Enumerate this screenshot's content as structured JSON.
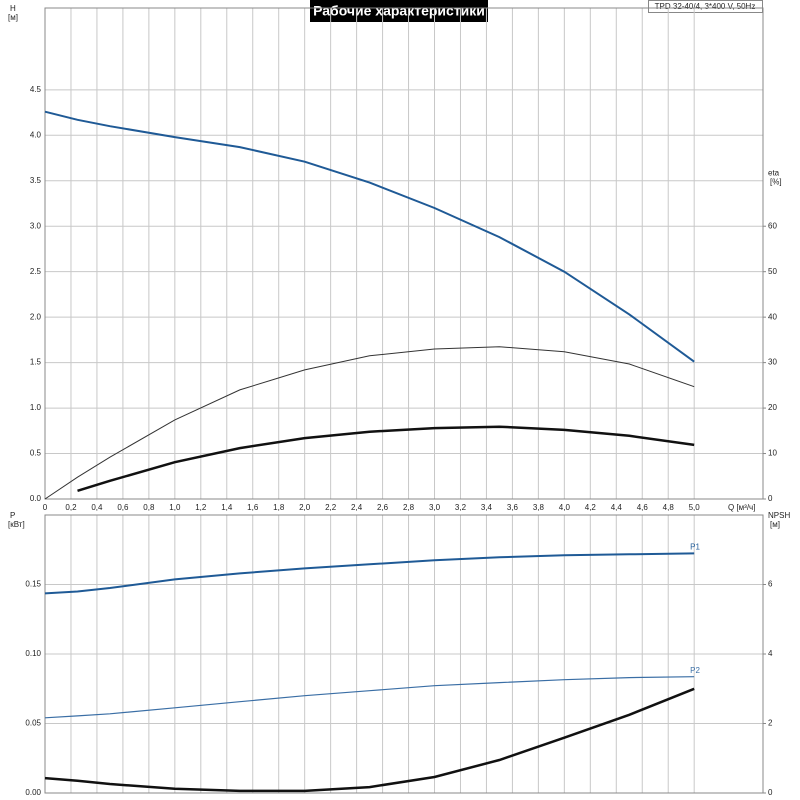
{
  "title": "Рабочие характеристики",
  "model": "TPD 32-40/4, 3*400 V, 50Hz",
  "chart_data": [
    {
      "type": "line",
      "xlabel": "Q [м³/ч]",
      "ylabel": "H",
      "yunit": "[м]",
      "y2label": "eta",
      "y2unit": "[%]",
      "xlim": [
        0,
        5.53
      ],
      "ylim": [
        0,
        5.4
      ],
      "y2lim": [
        0,
        108
      ],
      "grid": true,
      "xticks": [
        {
          "value": 0,
          "label": "0"
        },
        {
          "value": 0.2,
          "label": "0,2"
        },
        {
          "value": 0.4,
          "label": "0,4"
        },
        {
          "value": 0.6,
          "label": "0,6"
        },
        {
          "value": 0.8,
          "label": "0,8"
        },
        {
          "value": 1.0,
          "label": "1,0"
        },
        {
          "value": 1.2,
          "label": "1,2"
        },
        {
          "value": 1.4,
          "label": "1,4"
        },
        {
          "value": 1.6,
          "label": "1,6"
        },
        {
          "value": 1.8,
          "label": "1,8"
        },
        {
          "value": 2.0,
          "label": "2,0"
        },
        {
          "value": 2.2,
          "label": "2,2"
        },
        {
          "value": 2.4,
          "label": "2,4"
        },
        {
          "value": 2.6,
          "label": "2,6"
        },
        {
          "value": 2.8,
          "label": "2,8"
        },
        {
          "value": 3.0,
          "label": "3,0"
        },
        {
          "value": 3.2,
          "label": "3,2"
        },
        {
          "value": 3.4,
          "label": "3,4"
        },
        {
          "value": 3.6,
          "label": "3,6"
        },
        {
          "value": 3.8,
          "label": "3,8"
        },
        {
          "value": 4.0,
          "label": "4,0"
        },
        {
          "value": 4.2,
          "label": "4,2"
        },
        {
          "value": 4.4,
          "label": "4,4"
        },
        {
          "value": 4.6,
          "label": "4,6"
        },
        {
          "value": 4.8,
          "label": "4,8"
        },
        {
          "value": 5.0,
          "label": "5,0"
        }
      ],
      "yticks": [
        {
          "value": 0,
          "label": "0.0"
        },
        0.5,
        {
          "value": 1,
          "label": "1.0"
        },
        1.5,
        {
          "value": 2,
          "label": "2.0"
        },
        2.5,
        {
          "value": 3,
          "label": "3.0"
        },
        3.5,
        {
          "value": 4,
          "label": "4.0"
        },
        4.5
      ],
      "y2ticks": [
        0,
        10,
        20,
        30,
        40,
        50,
        60
      ],
      "x": [
        0,
        0.25,
        0.5,
        1.0,
        1.5,
        2.0,
        2.5,
        3.0,
        3.5,
        4.0,
        4.5,
        5.0
      ],
      "series": [
        {
          "color": "#1f5a96",
          "linewidth": 2,
          "values": [
            4.26,
            4.17,
            4.1,
            3.98,
            3.87,
            3.71,
            3.48,
            3.2,
            2.88,
            2.5,
            2.03,
            1.51
          ]
        },
        {
          "color": "#333333",
          "linewidth": 1,
          "axis": "y2",
          "values": [
            0,
            4.8,
            9.2,
            17.4,
            24,
            28.4,
            31.5,
            33,
            33.5,
            32.4,
            29.7,
            24.7
          ]
        },
        {
          "color": "#111111",
          "linewidth": 2.5,
          "axis": "y2",
          "values": [
            null,
            1.8,
            4,
            8.1,
            11.2,
            13.4,
            14.8,
            15.6,
            15.9,
            15.2,
            13.9,
            11.9
          ]
        }
      ]
    },
    {
      "type": "line",
      "ylabel": "P",
      "yunit": "[кВт]",
      "y2label": "NPSH",
      "y2unit": "[м]",
      "xlim": [
        0,
        5.53
      ],
      "ylim": [
        0,
        0.2
      ],
      "y2lim": [
        0,
        8
      ],
      "grid": true,
      "xticks": [
        0,
        0.2,
        0.4,
        0.6,
        0.8,
        1.0,
        1.2,
        1.4,
        1.6,
        1.8,
        2.0,
        2.2,
        2.4,
        2.6,
        2.8,
        3.0,
        3.2,
        3.4,
        3.6,
        3.8,
        4.0,
        4.2,
        4.4,
        4.6,
        4.8,
        5.0
      ],
      "yticks": [
        {
          "value": 0,
          "label": "0.00"
        },
        0.05,
        {
          "value": 0.1,
          "label": "0.10"
        },
        0.15
      ],
      "y2ticks": [
        0,
        2,
        4,
        6
      ],
      "x": [
        0,
        0.25,
        0.5,
        1.0,
        1.5,
        2.0,
        2.5,
        3.0,
        3.5,
        4.0,
        4.5,
        5.0
      ],
      "series": [
        {
          "name": "P1",
          "color": "#1f5a96",
          "linewidth": 2,
          "values": [
            0.1436,
            0.145,
            0.1475,
            0.1537,
            0.158,
            0.1616,
            0.1645,
            0.1674,
            0.1696,
            0.171,
            0.1717,
            0.1724
          ]
        },
        {
          "name": "P2",
          "color": "#3a6ea5",
          "linewidth": 1.2,
          "values": [
            0.0541,
            0.0555,
            0.057,
            0.0613,
            0.0657,
            0.07,
            0.0736,
            0.0772,
            0.0794,
            0.0815,
            0.083,
            0.0837
          ]
        },
        {
          "color": "#111111",
          "linewidth": 2.5,
          "axis": "y2",
          "values": [
            0.43,
            0.35,
            0.26,
            0.12,
            0.06,
            0.06,
            0.17,
            0.46,
            0.95,
            1.59,
            2.25,
            3.0
          ]
        }
      ]
    }
  ]
}
